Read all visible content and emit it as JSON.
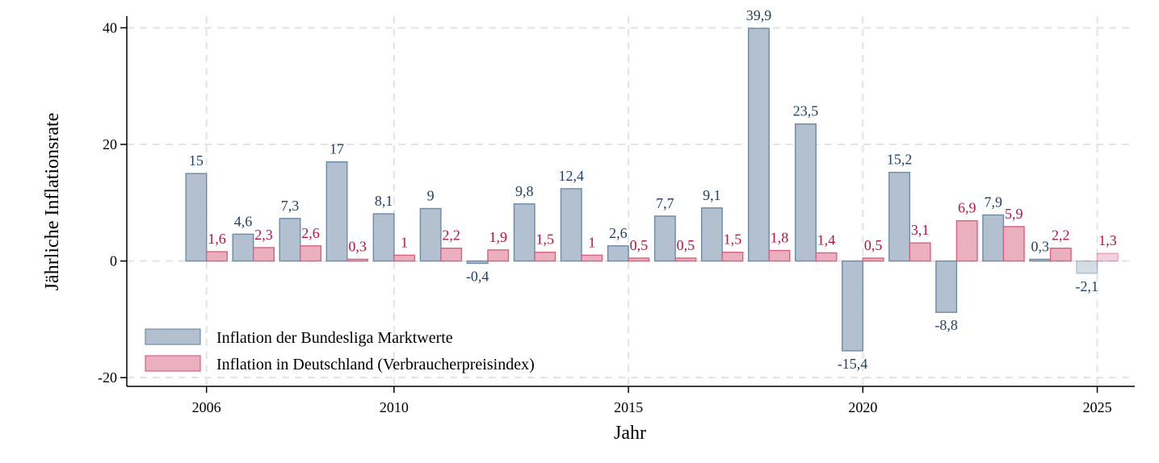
{
  "chart_data": {
    "type": "bar",
    "title": "",
    "xlabel": "Jahr",
    "ylabel": "Jährliche Inflationsrate",
    "x_ticks": [
      "2006",
      "2010",
      "2015",
      "2020",
      "2025"
    ],
    "y_ticks": [
      "40",
      "20",
      "0",
      "-20"
    ],
    "ylim": [
      -21.5,
      42
    ],
    "xlim": [
      2004.3,
      2025.8
    ],
    "grid": true,
    "legend_position": "bottom-left",
    "categories": [
      2006,
      2007,
      2008,
      2009,
      2010,
      2011,
      2012,
      2013,
      2014,
      2015,
      2016,
      2017,
      2018,
      2019,
      2020,
      2021,
      2022,
      2023,
      2024,
      2025
    ],
    "series": [
      {
        "name": "Inflation der Bundesliga Marktwerte",
        "color": "#b3c0cf",
        "stroke": "#6d8aa6",
        "label_color": "#1f3f66",
        "values": [
          15,
          4.6,
          7.3,
          17,
          8.1,
          9,
          -0.4,
          9.8,
          12.4,
          2.6,
          7.7,
          9.1,
          39.9,
          23.5,
          -15.4,
          15.2,
          -8.8,
          7.9,
          0.3,
          -2.1
        ],
        "labels": [
          "15",
          "4,6",
          "7,3",
          "17",
          "8,1",
          "9",
          "-0,4",
          "9,8",
          "12,4",
          "2,6",
          "7,7",
          "9,1",
          "39,9",
          "23,5",
          "-15,4",
          "15,2",
          "-8,8",
          "7,9",
          "0,3",
          "-2,1"
        ]
      },
      {
        "name": "Inflation in Deutschland (Verbraucherpreisindex)",
        "color": "#eab0bf",
        "stroke": "#d9607f",
        "label_color": "#b8143f",
        "values": [
          1.6,
          2.3,
          2.6,
          0.3,
          1,
          2.2,
          1.9,
          1.5,
          1,
          0.5,
          0.5,
          1.5,
          1.8,
          1.4,
          0.5,
          3.1,
          6.9,
          5.9,
          2.2,
          1.3
        ],
        "labels": [
          "1,6",
          "2,3",
          "2,6",
          "0,3",
          "1",
          "2,2",
          "1,9",
          "1,5",
          "1",
          "0,5",
          "0,5",
          "1,5",
          "1,8",
          "1,4",
          "0,5",
          "3,1",
          "6,9",
          "5,9",
          "2,2",
          "1,3"
        ]
      }
    ],
    "faded_categories": [
      2025
    ]
  }
}
